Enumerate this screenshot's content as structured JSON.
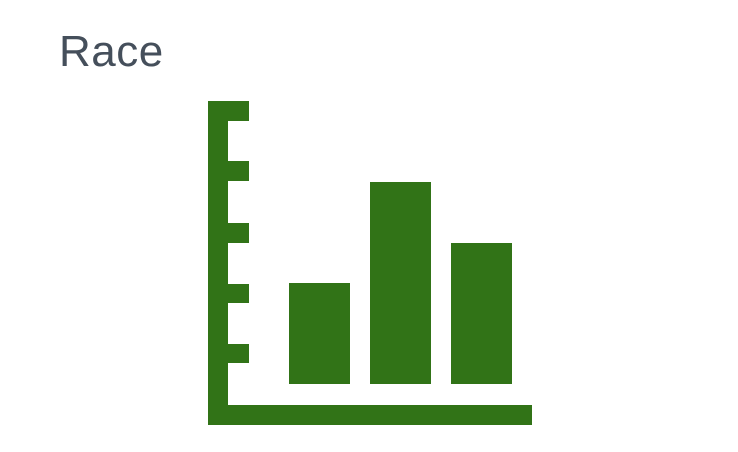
{
  "widget": {
    "title": "Race",
    "title_color": "#454f5b",
    "icon": "bar-chart-icon",
    "icon_color": "#317317"
  }
}
